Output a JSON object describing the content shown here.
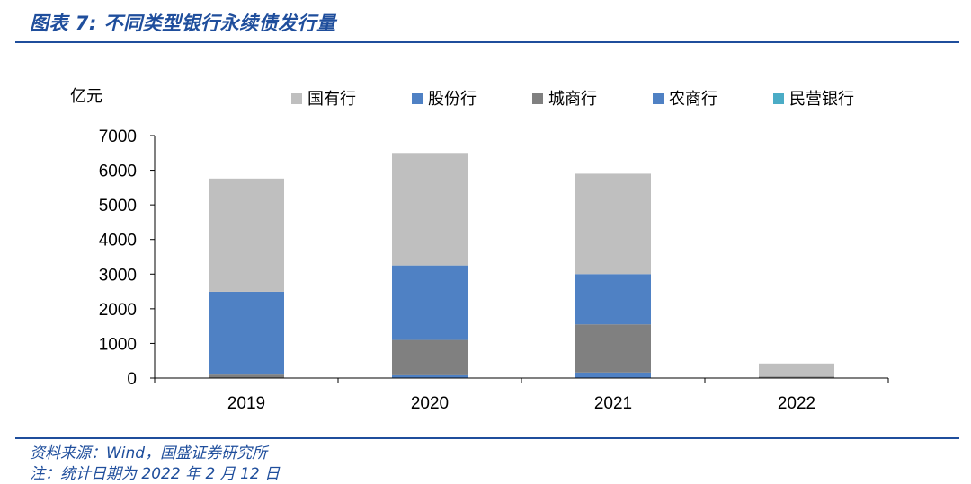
{
  "figure": {
    "title": "图表 7:  不同类型银行永续债发行量"
  },
  "footer": {
    "source": "资料来源：Wind，国盛证券研究所",
    "note": "注：统计日期为 2022 年 2 月 12 日"
  },
  "chart_data": {
    "type": "bar",
    "stacked": true,
    "title": "",
    "xlabel": "",
    "ylabel": "亿元",
    "ylim": [
      0,
      7000
    ],
    "yticks": [
      0,
      1000,
      2000,
      3000,
      4000,
      5000,
      6000,
      7000
    ],
    "grid": false,
    "legend_position": "top",
    "categories": [
      "2019",
      "2020",
      "2021",
      "2022"
    ],
    "series": [
      {
        "name": "国有行",
        "color": "#bfbfbf",
        "values": [
          3270,
          3250,
          2900,
          380
        ]
      },
      {
        "name": "股份行",
        "color": "#4f81c4",
        "values": [
          2390,
          2150,
          1450,
          0
        ]
      },
      {
        "name": "城商行",
        "color": "#808080",
        "values": [
          100,
          1020,
          1390,
          40
        ]
      },
      {
        "name": "农商行",
        "color": "#4f81c4",
        "values": [
          0,
          80,
          160,
          0
        ]
      },
      {
        "name": "民营银行",
        "color": "#4bacc6",
        "values": [
          0,
          0,
          0,
          0
        ]
      }
    ]
  }
}
